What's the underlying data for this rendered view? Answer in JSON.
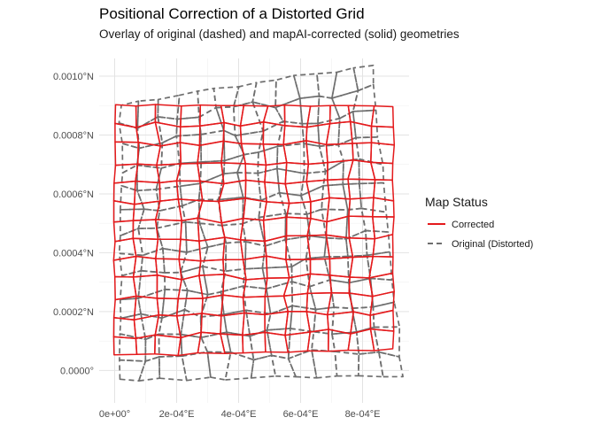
{
  "chart_data": {
    "type": "map-grid-overlay",
    "title": "Positional Correction of a Distorted Grid",
    "subtitle": "Overlay of original (dashed) and mapAI-corrected (solid) geometries",
    "x_ticks": [
      {
        "value": 0,
        "label": "0e+00°"
      },
      {
        "value": 0.0002,
        "label": "2e-04°E"
      },
      {
        "value": 0.0004,
        "label": "4e-04°E"
      },
      {
        "value": 0.0006,
        "label": "6e-04°E"
      },
      {
        "value": 0.0008,
        "label": "8e-04°E"
      }
    ],
    "y_ticks": [
      {
        "value": 0,
        "label": "0.0000°"
      },
      {
        "value": 0.0002,
        "label": "0.0002°N"
      },
      {
        "value": 0.0004,
        "label": "0.0004°N"
      },
      {
        "value": 0.0006,
        "label": "0.0006°N"
      },
      {
        "value": 0.0008,
        "label": "0.0008°N"
      },
      {
        "value": 0.001,
        "label": "0.0010°N"
      }
    ],
    "xlim": [
      -5e-05,
      0.00095
    ],
    "ylim": [
      -0.00011,
      0.00106
    ],
    "grid": true,
    "legend": {
      "title": "Map Status",
      "position": "right",
      "items": [
        {
          "label": "Corrected",
          "color": "#e41a1c",
          "linetype": "solid"
        },
        {
          "label": "Original (Distorted)",
          "color": "#6e6e6e",
          "linetype": "dashed"
        }
      ]
    },
    "grid_cells": {
      "nx": 13,
      "ny": 13,
      "x_range": [
        0,
        0.0009
      ],
      "y_range": [
        0,
        0.0009
      ]
    },
    "series": [
      {
        "name": "Corrected",
        "color": "#e41a1c",
        "corners": {
          "bottom_left": [
            0,
            5e-05
          ],
          "bottom_right": [
            0.0009,
            7e-05
          ],
          "top_left": [
            0,
            0.0009
          ],
          "top_right": [
            0.0009,
            0.0009
          ]
        },
        "noise": 1e-05
      },
      {
        "name": "Original (Distorted)",
        "color": "#6e6e6e",
        "corners": {
          "bottom_left": [
            2e-05,
            -3e-05
          ],
          "bottom_right": [
            0.00093,
            -2e-05
          ],
          "top_left": [
            2e-05,
            0.0009
          ],
          "top_right": [
            0.00083,
            0.00104
          ]
        },
        "noise": 1.6e-05
      }
    ]
  }
}
